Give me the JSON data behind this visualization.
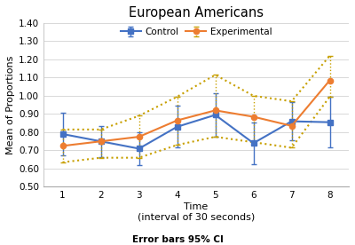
{
  "title": "European Americans",
  "xlabel": "Time\n(interval of 30 seconds)",
  "ylabel": "Mean of Proportions",
  "footnote": "Error bars 95% CI",
  "x": [
    1,
    2,
    3,
    4,
    5,
    6,
    7,
    8
  ],
  "control_y": [
    0.79,
    0.75,
    0.71,
    0.83,
    0.895,
    0.74,
    0.86,
    0.855
  ],
  "control_yerr_lo": [
    0.115,
    0.085,
    0.09,
    0.115,
    0.12,
    0.115,
    0.105,
    0.14
  ],
  "control_yerr_hi": [
    0.115,
    0.085,
    0.09,
    0.115,
    0.12,
    0.115,
    0.105,
    0.14
  ],
  "experimental_y": [
    0.725,
    0.75,
    0.775,
    0.865,
    0.92,
    0.885,
    0.835,
    1.085
  ],
  "experimental_yerr_lo": [
    0.09,
    0.09,
    0.115,
    0.135,
    0.145,
    0.14,
    0.12,
    0.09
  ],
  "experimental_yerr_hi": [
    0.09,
    0.065,
    0.115,
    0.13,
    0.195,
    0.115,
    0.135,
    0.135
  ],
  "control_color": "#4472C4",
  "control_err_color": "#4472C4",
  "experimental_color": "#ED7D31",
  "experimental_err_color": "#C8A000",
  "control_label": "Control",
  "experimental_label": "Experimental",
  "ylim": [
    0.5,
    1.4
  ],
  "yticks": [
    0.5,
    0.6,
    0.7,
    0.8,
    0.9,
    1.0,
    1.1,
    1.2,
    1.3,
    1.4
  ],
  "xticks": [
    1,
    2,
    3,
    4,
    5,
    6,
    7,
    8
  ],
  "plot_bg": "#ffffff",
  "fig_bg": "#ffffff",
  "grid_color": "#d8d8d8"
}
